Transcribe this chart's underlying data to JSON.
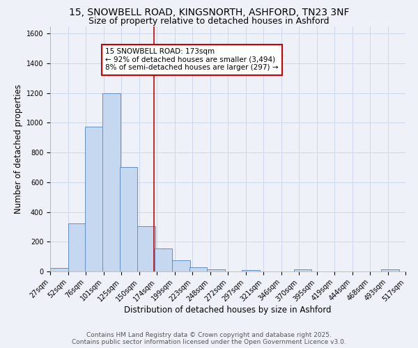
{
  "title_line1": "15, SNOWBELL ROAD, KINGSNORTH, ASHFORD, TN23 3NF",
  "title_line2": "Size of property relative to detached houses in Ashford",
  "xlabel": "Distribution of detached houses by size in Ashford",
  "ylabel": "Number of detached properties",
  "bar_left_edges": [
    27,
    52,
    76,
    101,
    125,
    150,
    174,
    199,
    223,
    248,
    272,
    297,
    321,
    346,
    370,
    395,
    419,
    444,
    468,
    493
  ],
  "bar_heights": [
    25,
    325,
    975,
    1200,
    700,
    305,
    155,
    75,
    30,
    15,
    0,
    10,
    0,
    0,
    12,
    0,
    0,
    0,
    0,
    12
  ],
  "bin_width": 25,
  "bar_color": "#c5d8ef",
  "bar_edge_color": "#6090c8",
  "grid_color": "#c8d4e8",
  "background_color": "#eef2f8",
  "vline_x": 173,
  "vline_color": "#cc0000",
  "annotation_text": "15 SNOWBELL ROAD: 173sqm\n← 92% of detached houses are smaller (3,494)\n8% of semi-detached houses are larger (297) →",
  "annotation_box_color": "#ffffff",
  "annotation_box_edge": "#cc0000",
  "ylim": [
    0,
    1650
  ],
  "yticks": [
    0,
    200,
    400,
    600,
    800,
    1000,
    1200,
    1400,
    1600
  ],
  "tick_labels": [
    "27sqm",
    "52sqm",
    "76sqm",
    "101sqm",
    "125sqm",
    "150sqm",
    "174sqm",
    "199sqm",
    "223sqm",
    "248sqm",
    "272sqm",
    "297sqm",
    "321sqm",
    "346sqm",
    "370sqm",
    "395sqm",
    "419sqm",
    "444sqm",
    "468sqm",
    "493sqm",
    "517sqm"
  ],
  "footer_line1": "Contains HM Land Registry data © Crown copyright and database right 2025.",
  "footer_line2": "Contains public sector information licensed under the Open Government Licence v3.0.",
  "title_fontsize": 10,
  "subtitle_fontsize": 9,
  "axis_label_fontsize": 8.5,
  "tick_fontsize": 7,
  "annotation_fontsize": 7.5,
  "footer_fontsize": 6.5
}
